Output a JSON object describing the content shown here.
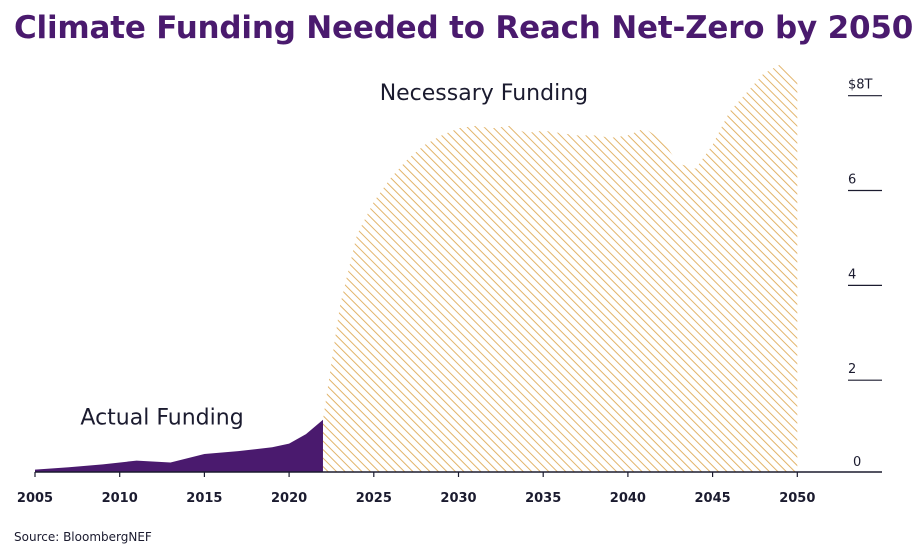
{
  "title": "Climate Funding Needed to Reach Net-Zero by 2050",
  "source": "Source: BloombergNEF",
  "colors": {
    "actual": "#4a1a6e",
    "necessary_hatch": "#e2b46a",
    "text": "#1b1b2f",
    "axis": "#1b1b2f"
  },
  "chart_data": {
    "type": "area",
    "title": "Climate Funding Needed to Reach Net-Zero by 2050",
    "xlim": [
      2005,
      2055
    ],
    "ylim": [
      0,
      8.5
    ],
    "x_ticks": [
      2005,
      2010,
      2015,
      2020,
      2025,
      2030,
      2035,
      2040,
      2045,
      2050
    ],
    "x_tick_labels": [
      "2005",
      "2010",
      "2015",
      "2020",
      "2025",
      "2030",
      "2035",
      "2040",
      "2045",
      "2050"
    ],
    "y_ticks": [
      0,
      2,
      4,
      6,
      8
    ],
    "y_tick_labels": [
      "0",
      "2",
      "4",
      "6",
      "$8T"
    ],
    "grid": false,
    "series": [
      {
        "name": "Actual Funding",
        "style": "solid",
        "x": [
          2005,
          2007,
          2009,
          2011,
          2013,
          2015,
          2017,
          2019,
          2020,
          2021,
          2022
        ],
        "values": [
          0.05,
          0.1,
          0.16,
          0.24,
          0.2,
          0.38,
          0.44,
          0.52,
          0.6,
          0.8,
          1.1
        ]
      },
      {
        "name": "Necessary Funding",
        "style": "hatched",
        "x": [
          2022,
          2023,
          2024,
          2025,
          2026,
          2027,
          2028,
          2029,
          2030,
          2031,
          2032,
          2033,
          2034,
          2035,
          2036,
          2037,
          2038,
          2039,
          2040,
          2041,
          2042,
          2043,
          2044,
          2045,
          2046,
          2047,
          2048,
          2049,
          2050
        ],
        "values": [
          1.1,
          3.5,
          5.0,
          5.7,
          6.2,
          6.6,
          6.9,
          7.1,
          7.25,
          7.3,
          7.25,
          7.3,
          7.15,
          7.2,
          7.15,
          7.1,
          7.1,
          7.05,
          7.1,
          7.25,
          7.0,
          6.5,
          6.4,
          6.9,
          7.6,
          8.0,
          8.4,
          8.6,
          8.3
        ]
      }
    ]
  }
}
